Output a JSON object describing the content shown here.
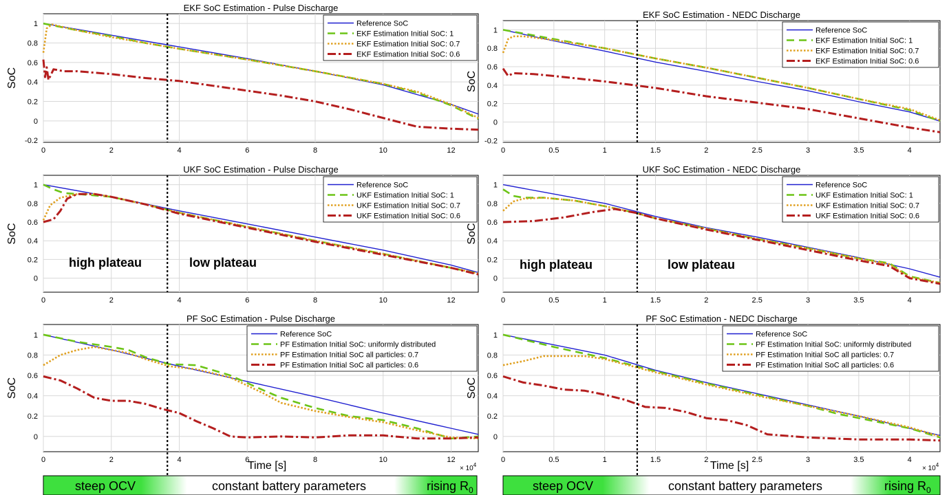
{
  "colors": {
    "reference": "#1f1fd0",
    "init1": "#6cc416",
    "init07": "#e0a020",
    "init06": "#b41e1e",
    "band_green": "#3ee03e",
    "grid": "#d8d8d8"
  },
  "ylabel": "SoC",
  "xlabel": "Time [s]",
  "xexp": "× 10",
  "xexp_power": "4",
  "annotations": {
    "high_plateau": "high plateau",
    "low_plateau": "low plateau"
  },
  "bottom_bands": {
    "steep_ocv": "steep OCV",
    "constant": "constant battery parameters",
    "rising": "rising R",
    "rising_sub": "0"
  },
  "chart_data": [
    {
      "type": "line",
      "title": "EKF SoC Estimation - Pulse Discharge",
      "xlim": [
        0,
        12.8
      ],
      "ylim": [
        -0.22,
        1.1
      ],
      "xticks": [
        0,
        2,
        4,
        6,
        8,
        10,
        12
      ],
      "yticks": [
        -0.2,
        0,
        0.2,
        0.4,
        0.6,
        0.8,
        1
      ],
      "divider_x": 3.65,
      "series": [
        {
          "name": "Reference SoC",
          "style": "ref",
          "x": [
            0,
            2,
            4,
            6,
            8,
            10,
            12,
            12.8
          ],
          "y": [
            1.0,
            0.88,
            0.76,
            0.64,
            0.51,
            0.37,
            0.17,
            0.07
          ]
        },
        {
          "name": "EKF Estimation Initial SoC: 1",
          "style": "init1",
          "x": [
            0,
            1,
            2,
            3,
            4,
            6,
            8,
            10,
            11,
            12,
            12.8
          ],
          "y": [
            1.0,
            0.93,
            0.87,
            0.8,
            0.74,
            0.63,
            0.51,
            0.38,
            0.29,
            0.16,
            0.02
          ]
        },
        {
          "name": "EKF Estimation Initial SoC: 0.7",
          "style": "init07",
          "x": [
            0,
            0.1,
            0.25,
            1,
            2,
            4,
            6,
            8,
            10,
            11,
            12,
            12.8
          ],
          "y": [
            0.7,
            0.95,
            0.99,
            0.93,
            0.86,
            0.74,
            0.63,
            0.51,
            0.38,
            0.3,
            0.17,
            0.03
          ]
        },
        {
          "name": "EKF Estimation Initial SoC: 0.6",
          "style": "init06",
          "x": [
            0,
            0.05,
            0.1,
            0.15,
            0.3,
            0.6,
            1,
            2,
            3,
            4,
            5,
            6,
            7,
            8,
            9,
            10,
            11,
            12,
            12.8
          ],
          "y": [
            0.63,
            0.45,
            0.55,
            0.42,
            0.53,
            0.51,
            0.51,
            0.48,
            0.44,
            0.41,
            0.36,
            0.31,
            0.26,
            0.2,
            0.12,
            0.03,
            -0.06,
            -0.08,
            -0.09
          ]
        }
      ]
    },
    {
      "type": "line",
      "title": "EKF SoC Estimation - NEDC Discharge",
      "xlim": [
        0,
        4.3
      ],
      "ylim": [
        -0.22,
        1.1
      ],
      "xticks": [
        0,
        0.5,
        1,
        1.5,
        2,
        2.5,
        3,
        3.5,
        4
      ],
      "yticks": [
        -0.2,
        0,
        0.2,
        0.4,
        0.6,
        0.8,
        1
      ],
      "divider_x": 1.32,
      "series": [
        {
          "name": "Reference SoC",
          "style": "ref",
          "x": [
            0,
            0.5,
            1,
            1.5,
            2,
            2.5,
            3,
            3.5,
            4,
            4.3
          ],
          "y": [
            1.0,
            0.88,
            0.77,
            0.65,
            0.55,
            0.44,
            0.34,
            0.22,
            0.11,
            0.01
          ]
        },
        {
          "name": "EKF Estimation Initial SoC: 1",
          "style": "init1",
          "x": [
            0,
            0.5,
            1,
            1.5,
            2,
            2.5,
            3,
            3.5,
            4,
            4.3
          ],
          "y": [
            1.0,
            0.9,
            0.8,
            0.69,
            0.59,
            0.48,
            0.37,
            0.25,
            0.13,
            0.01
          ]
        },
        {
          "name": "EKF Estimation Initial SoC: 0.7",
          "style": "init07",
          "x": [
            0,
            0.05,
            0.1,
            0.2,
            0.5,
            1,
            1.5,
            2,
            2.5,
            3,
            3.5,
            4,
            4.3
          ],
          "y": [
            0.75,
            0.9,
            0.93,
            0.93,
            0.89,
            0.8,
            0.69,
            0.59,
            0.48,
            0.37,
            0.25,
            0.14,
            0.02
          ]
        },
        {
          "name": "EKF Estimation Initial SoC: 0.6",
          "style": "init06",
          "x": [
            0,
            0.05,
            0.1,
            0.3,
            0.5,
            1,
            1.5,
            2,
            2.5,
            3,
            3.5,
            4,
            4.3
          ],
          "y": [
            0.58,
            0.5,
            0.53,
            0.52,
            0.5,
            0.44,
            0.37,
            0.28,
            0.21,
            0.14,
            0.04,
            -0.06,
            -0.11
          ]
        }
      ]
    },
    {
      "type": "line",
      "title": "UKF SoC Estimation - Pulse Discharge",
      "xlim": [
        0,
        12.8
      ],
      "ylim": [
        -0.15,
        1.1
      ],
      "xticks": [
        0,
        2,
        4,
        6,
        8,
        10,
        12
      ],
      "yticks": [
        0,
        0.2,
        0.4,
        0.6,
        0.8,
        1
      ],
      "divider_x": 3.65,
      "series": [
        {
          "name": "Reference SoC",
          "style": "ref",
          "x": [
            0,
            2,
            4,
            6,
            8,
            10,
            12,
            12.8
          ],
          "y": [
            1.0,
            0.87,
            0.72,
            0.58,
            0.44,
            0.3,
            0.14,
            0.06
          ]
        },
        {
          "name": "UKF Estimation Initial SoC: 1",
          "style": "init1",
          "x": [
            0,
            0.3,
            0.6,
            1,
            2,
            3,
            4,
            6,
            8,
            10,
            12,
            12.8
          ],
          "y": [
            1.0,
            0.95,
            0.91,
            0.9,
            0.87,
            0.79,
            0.7,
            0.55,
            0.4,
            0.26,
            0.11,
            0.05
          ]
        },
        {
          "name": "UKF Estimation Initial SoC: 0.7",
          "style": "init07",
          "x": [
            0,
            0.2,
            0.5,
            1,
            1.5,
            2,
            3,
            4,
            6,
            8,
            10,
            12,
            12.8
          ],
          "y": [
            0.62,
            0.78,
            0.86,
            0.9,
            0.9,
            0.87,
            0.79,
            0.7,
            0.55,
            0.4,
            0.26,
            0.11,
            0.05
          ]
        },
        {
          "name": "UKF Estimation Initial SoC: 0.6",
          "style": "init06",
          "x": [
            0,
            0.3,
            0.5,
            0.7,
            1,
            1.5,
            2,
            3,
            4,
            6,
            8,
            10,
            12,
            12.8
          ],
          "y": [
            0.6,
            0.63,
            0.72,
            0.85,
            0.9,
            0.9,
            0.87,
            0.79,
            0.69,
            0.54,
            0.39,
            0.25,
            0.11,
            0.04
          ]
        }
      ]
    },
    {
      "type": "line",
      "title": "UKF SoC Estimation - NEDC Discharge",
      "xlim": [
        0,
        4.3
      ],
      "ylim": [
        -0.15,
        1.1
      ],
      "xticks": [
        0,
        0.5,
        1,
        1.5,
        2,
        2.5,
        3,
        3.5,
        4
      ],
      "yticks": [
        0,
        0.2,
        0.4,
        0.6,
        0.8,
        1
      ],
      "divider_x": 1.32,
      "series": [
        {
          "name": "Reference SoC",
          "style": "ref",
          "x": [
            0,
            0.5,
            1,
            1.5,
            2,
            2.5,
            3,
            3.5,
            4,
            4.3
          ],
          "y": [
            1.0,
            0.9,
            0.8,
            0.66,
            0.54,
            0.44,
            0.33,
            0.22,
            0.1,
            0.01
          ]
        },
        {
          "name": "UKF Estimation Initial SoC: 1",
          "style": "init1",
          "x": [
            0,
            0.1,
            0.2,
            0.4,
            0.7,
            1,
            1.3,
            1.5,
            2,
            2.5,
            3,
            3.5,
            3.8,
            4,
            4.3
          ],
          "y": [
            0.95,
            0.88,
            0.86,
            0.86,
            0.83,
            0.77,
            0.7,
            0.64,
            0.53,
            0.42,
            0.32,
            0.21,
            0.16,
            0.02,
            -0.05
          ]
        },
        {
          "name": "UKF Estimation Initial SoC: 0.7",
          "style": "init07",
          "x": [
            0,
            0.1,
            0.2,
            0.4,
            0.7,
            1,
            1.3,
            1.5,
            2,
            2.5,
            3,
            3.5,
            3.8,
            4,
            4.3
          ],
          "y": [
            0.72,
            0.82,
            0.85,
            0.86,
            0.83,
            0.77,
            0.7,
            0.64,
            0.53,
            0.42,
            0.32,
            0.21,
            0.15,
            0.01,
            -0.05
          ]
        },
        {
          "name": "UKF Estimation Initial SoC: 0.6",
          "style": "init06",
          "x": [
            0,
            0.3,
            0.6,
            0.9,
            1.1,
            1.3,
            1.5,
            2,
            2.5,
            3,
            3.5,
            3.8,
            4,
            4.3
          ],
          "y": [
            0.6,
            0.61,
            0.65,
            0.71,
            0.74,
            0.7,
            0.64,
            0.52,
            0.41,
            0.3,
            0.19,
            0.13,
            0.0,
            -0.06
          ]
        }
      ]
    },
    {
      "type": "line",
      "title": "PF SoC Estimation - Pulse Discharge",
      "xlim": [
        0,
        12.8
      ],
      "ylim": [
        -0.15,
        1.1
      ],
      "xticks": [
        0,
        2,
        4,
        6,
        8,
        10,
        12
      ],
      "yticks": [
        0,
        0.2,
        0.4,
        0.6,
        0.8,
        1
      ],
      "divider_x": 3.65,
      "series": [
        {
          "name": "Reference SoC",
          "style": "ref",
          "x": [
            0,
            2,
            4,
            6,
            8,
            10,
            12,
            12.8
          ],
          "y": [
            1.0,
            0.85,
            0.69,
            0.54,
            0.39,
            0.23,
            0.08,
            0.02
          ]
        },
        {
          "name": "PF Estimation Initial SoC: uniformly distributed",
          "style": "init1",
          "x": [
            0,
            1,
            2,
            2.5,
            3,
            3.7,
            4.5,
            5.5,
            6.5,
            7,
            8,
            9,
            10,
            11,
            12,
            12.8
          ],
          "y": [
            1.0,
            0.93,
            0.88,
            0.85,
            0.78,
            0.71,
            0.7,
            0.6,
            0.45,
            0.38,
            0.28,
            0.2,
            0.16,
            0.08,
            -0.02,
            0.0
          ]
        },
        {
          "name": "PF Estimation Initial SoC all particles: 0.7",
          "style": "init07",
          "x": [
            0,
            0.5,
            1,
            1.5,
            2,
            2.5,
            3,
            3.7,
            4.5,
            5.5,
            6.5,
            7,
            8,
            9,
            10,
            11,
            12,
            12.8
          ],
          "y": [
            0.7,
            0.8,
            0.85,
            0.88,
            0.85,
            0.82,
            0.76,
            0.69,
            0.66,
            0.58,
            0.42,
            0.33,
            0.25,
            0.19,
            0.14,
            0.06,
            -0.01,
            -0.02
          ]
        },
        {
          "name": "PF Estimation Initial SoC all particles: 0.6",
          "style": "init06",
          "x": [
            0,
            0.5,
            1,
            1.5,
            2,
            2.5,
            3,
            3.5,
            4,
            4.5,
            5,
            5.5,
            6,
            7,
            8,
            9,
            10,
            11,
            12,
            12.8
          ],
          "y": [
            0.59,
            0.55,
            0.47,
            0.38,
            0.35,
            0.35,
            0.32,
            0.27,
            0.23,
            0.15,
            0.08,
            0.0,
            -0.01,
            0.0,
            -0.01,
            0.01,
            0.01,
            -0.02,
            -0.02,
            -0.01
          ]
        }
      ]
    },
    {
      "type": "line",
      "title": "PF SoC Estimation - NEDC Discharge",
      "xlim": [
        0,
        4.3
      ],
      "ylim": [
        -0.15,
        1.1
      ],
      "xticks": [
        0,
        0.5,
        1,
        1.5,
        2,
        2.5,
        3,
        3.5,
        4
      ],
      "yticks": [
        0,
        0.2,
        0.4,
        0.6,
        0.8,
        1
      ],
      "divider_x": 1.32,
      "series": [
        {
          "name": "Reference SoC",
          "style": "ref",
          "x": [
            0,
            0.5,
            1,
            1.5,
            2,
            2.5,
            3,
            3.5,
            4,
            4.3
          ],
          "y": [
            1.0,
            0.9,
            0.8,
            0.65,
            0.53,
            0.42,
            0.31,
            0.2,
            0.08,
            0.01
          ]
        },
        {
          "name": "PF Estimation Initial SoC: uniformly distributed",
          "style": "init1",
          "x": [
            0,
            0.5,
            1,
            1.5,
            2,
            2.5,
            3,
            3.3,
            3.6,
            4,
            4.3
          ],
          "y": [
            1.0,
            0.88,
            0.77,
            0.64,
            0.52,
            0.41,
            0.3,
            0.22,
            0.16,
            0.08,
            -0.01
          ]
        },
        {
          "name": "PF Estimation Initial SoC all particles: 0.7",
          "style": "init07",
          "x": [
            0,
            0.2,
            0.4,
            0.6,
            0.8,
            1,
            1.5,
            2,
            2.5,
            3,
            3.5,
            4,
            4.3
          ],
          "y": [
            0.7,
            0.74,
            0.79,
            0.79,
            0.79,
            0.76,
            0.63,
            0.51,
            0.4,
            0.3,
            0.2,
            0.09,
            0.0
          ]
        },
        {
          "name": "PF Estimation Initial SoC all particles: 0.6",
          "style": "init06",
          "x": [
            0,
            0.2,
            0.4,
            0.6,
            0.8,
            1,
            1.2,
            1.4,
            1.6,
            1.8,
            2,
            2.2,
            2.4,
            2.6,
            3,
            3.5,
            4,
            4.3
          ],
          "y": [
            0.59,
            0.53,
            0.5,
            0.46,
            0.45,
            0.41,
            0.36,
            0.29,
            0.28,
            0.24,
            0.18,
            0.16,
            0.11,
            0.02,
            -0.01,
            -0.03,
            -0.03,
            -0.04
          ]
        }
      ]
    }
  ]
}
